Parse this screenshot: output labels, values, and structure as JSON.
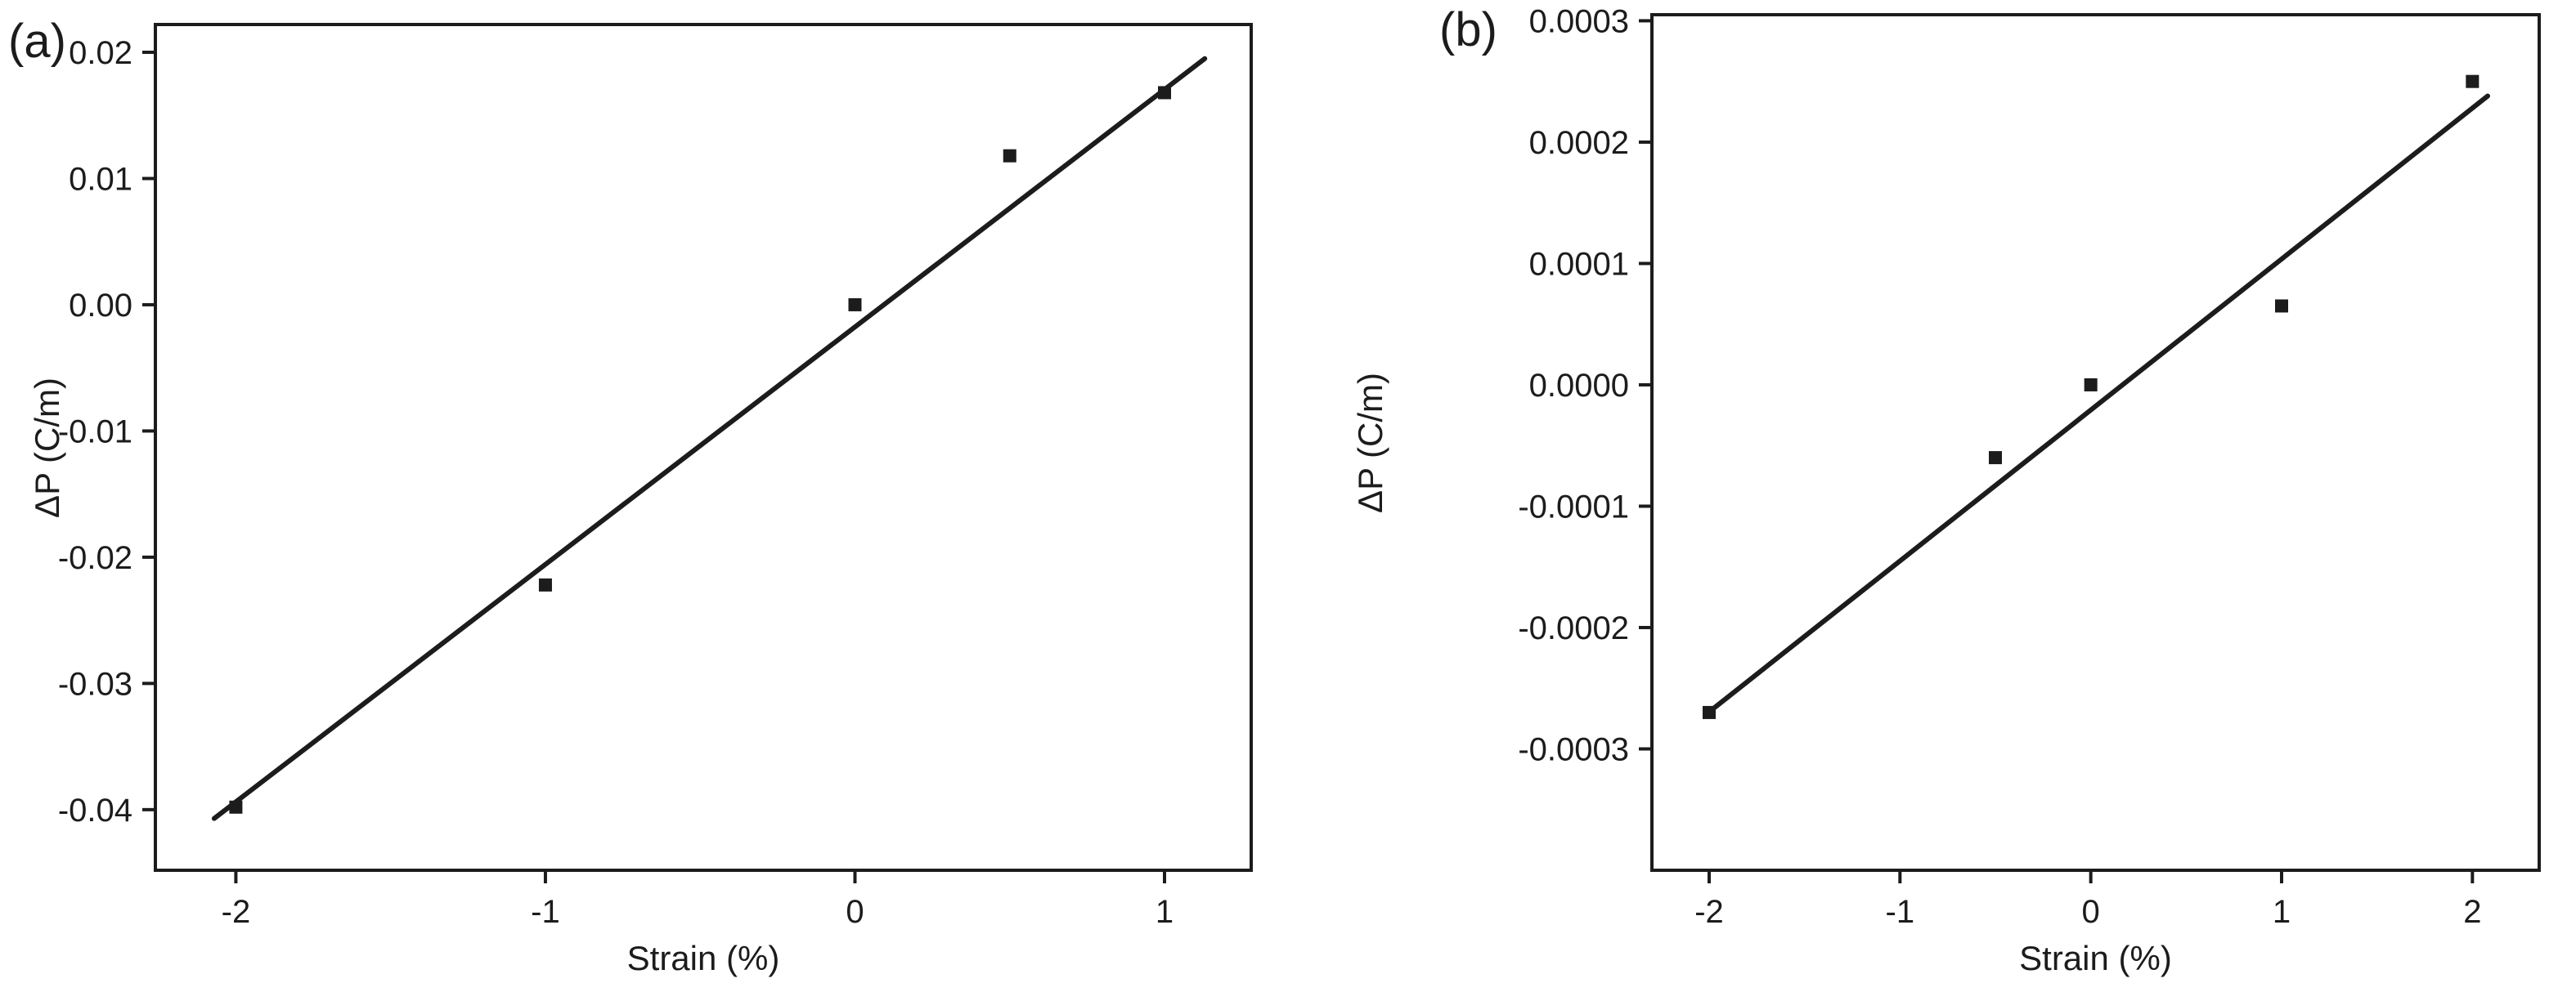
{
  "figure": {
    "background": "#ffffff",
    "ink_color": "#1c1c1c"
  },
  "chart_data": [
    {
      "type": "scatter",
      "panel_label": "(a)",
      "title": "",
      "xlabel": "Strain (%)",
      "ylabel": "ΔP (C/m)",
      "xlim": [
        -2.26,
        1.28
      ],
      "ylim": [
        -0.0448,
        0.0222
      ],
      "grid": false,
      "marker": "square",
      "x_ticks": [
        -2,
        -1,
        0,
        1
      ],
      "x_tick_labels": [
        "-2",
        "-1",
        "0",
        "1"
      ],
      "y_ticks": [
        0.02,
        0.01,
        0,
        -0.01,
        -0.02,
        -0.03,
        -0.04
      ],
      "y_tick_labels": [
        "0.02",
        "0.01",
        "0.00",
        "-0.01",
        "-0.02",
        "-0.03",
        "-0.04"
      ],
      "points": {
        "x": [
          -2,
          -1,
          0,
          0.5,
          1
        ],
        "y": [
          -0.0398,
          -0.0222,
          0.0,
          0.0118,
          0.0168
        ]
      },
      "fit_line": {
        "x": [
          -2.07,
          1.13
        ],
        "y": [
          -0.0407,
          0.0195
        ]
      }
    },
    {
      "type": "scatter",
      "panel_label": "(b)",
      "title": "",
      "xlabel": "Strain (%)",
      "ylabel": "ΔP (C/m)",
      "xlim": [
        -2.3,
        2.35
      ],
      "ylim": [
        -0.0004,
        0.000305
      ],
      "grid": false,
      "marker": "square",
      "x_ticks": [
        -2,
        -1,
        0,
        1,
        2
      ],
      "x_tick_labels": [
        "-2",
        "-1",
        "0",
        "1",
        "2"
      ],
      "y_ticks": [
        0.0003,
        0.0002,
        0.0001,
        0,
        -0.0001,
        -0.0002,
        -0.0003
      ],
      "y_tick_labels": [
        "0.0003",
        "0.0002",
        "0.0001",
        "0.0000",
        "-0.0001",
        "-0.0002",
        "-0.0003"
      ],
      "points": {
        "x": [
          -2,
          -0.5,
          0,
          1,
          2
        ],
        "y": [
          -0.00027,
          -6e-05,
          0.0,
          6.5e-05,
          0.00025
        ]
      },
      "fit_line": {
        "x": [
          -2.02,
          2.08
        ],
        "y": [
          -0.000272,
          0.000238
        ]
      }
    }
  ]
}
